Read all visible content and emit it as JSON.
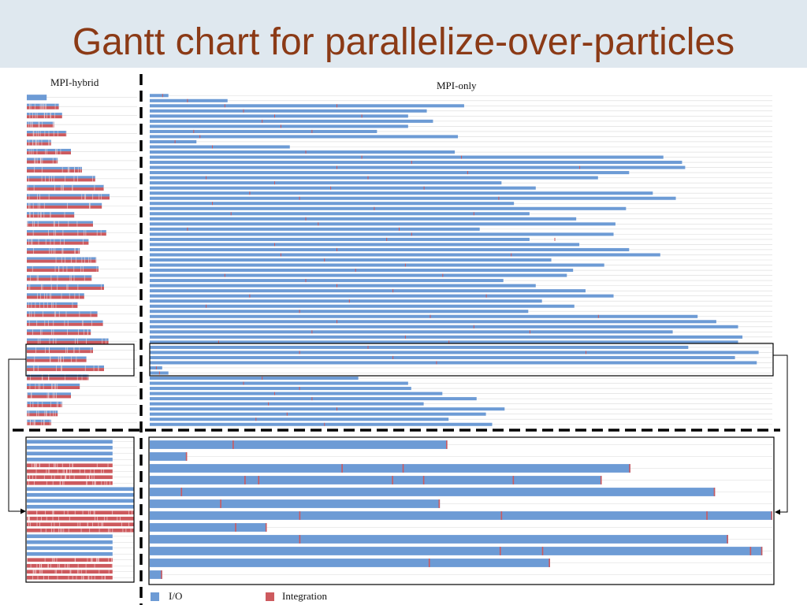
{
  "slide": {
    "title": "Gantt chart for parallelize-over-particles"
  },
  "colors": {
    "io": "#6d9bd5",
    "integration": "#cd5a5e",
    "title": "#8b3a16",
    "band": "#dfe8ef"
  },
  "chart_data": [
    {
      "type": "gantt",
      "title": "MPI-hybrid",
      "view": "overview",
      "xlim": [
        0,
        1000
      ],
      "rows": [
        {
          "end": 180,
          "kind": "io"
        },
        {
          "end": 290,
          "kind": "mixed"
        },
        {
          "end": 320,
          "kind": "mixed"
        },
        {
          "end": 250,
          "kind": "mixed"
        },
        {
          "end": 360,
          "kind": "mixed"
        },
        {
          "end": 220,
          "kind": "mixed"
        },
        {
          "end": 400,
          "kind": "mixed"
        },
        {
          "end": 280,
          "kind": "mixed"
        },
        {
          "end": 500,
          "kind": "mixed"
        },
        {
          "end": 620,
          "kind": "mixed"
        },
        {
          "end": 700,
          "kind": "mixed"
        },
        {
          "end": 750,
          "kind": "mixed"
        },
        {
          "end": 680,
          "kind": "mixed"
        },
        {
          "end": 430,
          "kind": "mixed"
        },
        {
          "end": 600,
          "kind": "mixed"
        },
        {
          "end": 720,
          "kind": "mixed"
        },
        {
          "end": 560,
          "kind": "mixed"
        },
        {
          "end": 480,
          "kind": "mixed"
        },
        {
          "end": 630,
          "kind": "mixed"
        },
        {
          "end": 650,
          "kind": "mixed"
        },
        {
          "end": 590,
          "kind": "mixed"
        },
        {
          "end": 700,
          "kind": "mixed"
        },
        {
          "end": 520,
          "kind": "mixed"
        },
        {
          "end": 460,
          "kind": "mixed"
        },
        {
          "end": 640,
          "kind": "mixed"
        },
        {
          "end": 690,
          "kind": "mixed"
        },
        {
          "end": 580,
          "kind": "mixed"
        },
        {
          "end": 740,
          "kind": "mixed"
        },
        {
          "end": 600,
          "kind": "mixed"
        },
        {
          "end": 540,
          "kind": "mixed"
        },
        {
          "end": 700,
          "kind": "mixed"
        },
        {
          "end": 560,
          "kind": "mixed"
        },
        {
          "end": 480,
          "kind": "mixed"
        },
        {
          "end": 400,
          "kind": "mixed"
        },
        {
          "end": 320,
          "kind": "mixed"
        },
        {
          "end": 280,
          "kind": "mixed"
        },
        {
          "end": 220,
          "kind": "mixed"
        }
      ]
    },
    {
      "type": "gantt",
      "title": "MPI-only",
      "view": "overview",
      "xlim": [
        0,
        1000
      ],
      "rows": [
        {
          "end": 30,
          "marks": [
            20
          ]
        },
        {
          "end": 125,
          "marks": [
            60
          ]
        },
        {
          "end": 505,
          "marks": [
            120,
            300
          ]
        },
        {
          "end": 445,
          "marks": [
            150
          ]
        },
        {
          "end": 415,
          "marks": [
            200,
            340
          ]
        },
        {
          "end": 455,
          "marks": [
            180
          ]
        },
        {
          "end": 415,
          "marks": [
            210
          ]
        },
        {
          "end": 365,
          "marks": [
            70,
            260
          ]
        },
        {
          "end": 495,
          "marks": [
            80
          ]
        },
        {
          "end": 75,
          "marks": [
            40
          ]
        },
        {
          "end": 225,
          "marks": [
            100
          ]
        },
        {
          "end": 490,
          "marks": [
            250
          ]
        },
        {
          "end": 825,
          "marks": [
            340,
            500
          ]
        },
        {
          "end": 855,
          "marks": [
            420
          ]
        },
        {
          "end": 860,
          "marks": [
            300,
            690
          ]
        },
        {
          "end": 770,
          "marks": [
            510
          ]
        },
        {
          "end": 720,
          "marks": [
            90,
            350
          ]
        },
        {
          "end": 565,
          "marks": [
            200
          ]
        },
        {
          "end": 620,
          "marks": [
            290,
            440
          ]
        },
        {
          "end": 808,
          "marks": [
            160
          ]
        },
        {
          "end": 845,
          "marks": [
            240,
            560
          ]
        },
        {
          "end": 585,
          "marks": [
            100
          ]
        },
        {
          "end": 765,
          "marks": [
            360
          ]
        },
        {
          "end": 610,
          "marks": [
            130,
            520
          ]
        },
        {
          "end": 685,
          "marks": [
            250
          ]
        },
        {
          "end": 748,
          "marks": [
            270
          ]
        },
        {
          "end": 530,
          "marks": [
            60,
            400
          ]
        },
        {
          "end": 745,
          "marks": [
            420
          ]
        },
        {
          "end": 610,
          "marks": [
            380,
            650
          ]
        },
        {
          "end": 690,
          "marks": [
            200
          ]
        },
        {
          "end": 770,
          "marks": [
            300
          ]
        },
        {
          "end": 820,
          "marks": [
            210,
            580
          ]
        },
        {
          "end": 645,
          "marks": [
            280
          ]
        },
        {
          "end": 730,
          "marks": [
            410
          ]
        },
        {
          "end": 680,
          "marks": [
            330
          ]
        },
        {
          "end": 670,
          "marks": [
            120,
            470
          ]
        },
        {
          "end": 568,
          "marks": [
            250
          ]
        },
        {
          "end": 620,
          "marks": [
            300
          ]
        },
        {
          "end": 700,
          "marks": [
            390
          ]
        },
        {
          "end": 745,
          "marks": [
            160,
            540
          ]
        },
        {
          "end": 630,
          "marks": [
            320
          ]
        },
        {
          "end": 682,
          "marks": [
            90
          ]
        },
        {
          "end": 608,
          "marks": [
            240
          ]
        },
        {
          "end": 880,
          "marks": [
            450,
            720
          ]
        },
        {
          "end": 910,
          "marks": [
            300
          ]
        },
        {
          "end": 945,
          "marks": [
            520
          ]
        },
        {
          "end": 840,
          "marks": [
            260,
            610
          ]
        },
        {
          "end": 952,
          "marks": [
            410
          ]
        },
        {
          "end": 945,
          "marks": [
            110,
            480
          ]
        },
        {
          "end": 865,
          "marks": [
            350
          ]
        },
        {
          "end": 978,
          "marks": [
            240,
            700
          ]
        },
        {
          "end": 940,
          "marks": [
            390
          ]
        },
        {
          "end": 975,
          "marks": [
            460
          ]
        },
        {
          "end": 20,
          "marks": [
            10
          ]
        },
        {
          "end": 30,
          "marks": [
            15
          ]
        },
        {
          "end": 335,
          "marks": [
            180
          ]
        },
        {
          "end": 415,
          "marks": [
            150
          ]
        },
        {
          "end": 420,
          "marks": [
            240
          ]
        },
        {
          "end": 470,
          "marks": [
            200
          ]
        },
        {
          "end": 525,
          "marks": [
            260
          ]
        },
        {
          "end": 440,
          "marks": [
            190
          ]
        },
        {
          "end": 570,
          "marks": [
            300
          ]
        },
        {
          "end": 540,
          "marks": [
            220
          ]
        },
        {
          "end": 480,
          "marks": [
            170
          ]
        },
        {
          "end": 550,
          "marks": [
            280
          ]
        }
      ]
    },
    {
      "type": "gantt",
      "title": "",
      "view": "zoom-mpi-hybrid",
      "xlim": [
        0,
        1000
      ],
      "rows": [
        {
          "end": 800,
          "kind": "io"
        },
        {
          "end": 800,
          "kind": "io"
        },
        {
          "end": 800,
          "kind": "io"
        },
        {
          "end": 800,
          "kind": "io"
        },
        {
          "end": 800,
          "kind": "integration"
        },
        {
          "end": 800,
          "kind": "integration"
        },
        {
          "end": 800,
          "kind": "integration"
        },
        {
          "end": 800,
          "kind": "integration"
        },
        {
          "end": 1000,
          "kind": "io"
        },
        {
          "end": 1000,
          "kind": "io"
        },
        {
          "end": 1000,
          "kind": "io"
        },
        {
          "end": 1000,
          "kind": "io"
        },
        {
          "end": 1000,
          "kind": "integration"
        },
        {
          "end": 1000,
          "kind": "integration"
        },
        {
          "end": 1000,
          "kind": "integration"
        },
        {
          "end": 1000,
          "kind": "integration"
        },
        {
          "end": 800,
          "kind": "io"
        },
        {
          "end": 800,
          "kind": "io"
        },
        {
          "end": 800,
          "kind": "io"
        },
        {
          "end": 800,
          "kind": "io"
        },
        {
          "end": 800,
          "kind": "integration"
        },
        {
          "end": 800,
          "kind": "integration"
        },
        {
          "end": 800,
          "kind": "integration"
        },
        {
          "end": 800,
          "kind": "integration"
        }
      ]
    },
    {
      "type": "gantt",
      "title": "",
      "view": "zoom-mpi-only",
      "xlim": [
        0,
        1000
      ],
      "rows": [
        {
          "end": 478,
          "marks": [
            133
          ]
        },
        {
          "end": 60,
          "marks": []
        },
        {
          "end": 772,
          "marks": [
            308,
            406
          ]
        },
        {
          "end": 726,
          "marks": [
            152,
            174,
            389,
            439,
            583
          ]
        },
        {
          "end": 908,
          "marks": [
            50
          ]
        },
        {
          "end": 466,
          "marks": [
            113
          ]
        },
        {
          "end": 1000,
          "marks": [
            240,
            564,
            894
          ]
        },
        {
          "end": 188,
          "marks": [
            137
          ]
        },
        {
          "end": 929,
          "marks": [
            240
          ]
        },
        {
          "end": 984,
          "marks": [
            562,
            630,
            964
          ]
        },
        {
          "end": 643,
          "marks": [
            448
          ]
        },
        {
          "end": 20,
          "marks": []
        }
      ]
    }
  ],
  "legend": [
    {
      "label": "I/O",
      "color": "#6d9bd5"
    },
    {
      "label": "Integration",
      "color": "#cd5a5e"
    }
  ]
}
